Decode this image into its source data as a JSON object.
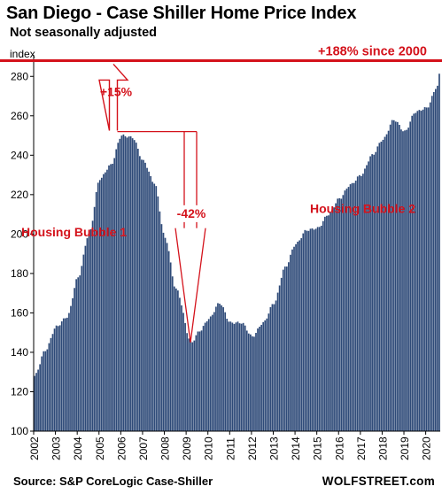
{
  "chart_data": {
    "type": "bar",
    "title": "San Diego - Case Shiller Home Price Index",
    "subtitle": "Not seasonally adjusted",
    "ylabel": "index",
    "ylim": [
      100,
      290
    ],
    "yticks": [
      100,
      120,
      140,
      160,
      180,
      200,
      220,
      240,
      260,
      280
    ],
    "xlabels": [
      "2002",
      "2003",
      "2004",
      "2005",
      "2006",
      "2007",
      "2008",
      "2009",
      "2010",
      "2011",
      "2012",
      "2013",
      "2014",
      "2015",
      "2016",
      "2017",
      "2018",
      "2019",
      "2020"
    ],
    "x_start": 2002.0,
    "months": 224,
    "grid": false,
    "series_color": "#2e4a78",
    "annotation_color": "#d4121b",
    "keypoints": [
      [
        2002.0,
        128
      ],
      [
        2002.5,
        141
      ],
      [
        2003.0,
        153
      ],
      [
        2003.5,
        158
      ],
      [
        2004.0,
        178
      ],
      [
        2004.5,
        200
      ],
      [
        2005.0,
        228
      ],
      [
        2005.5,
        235
      ],
      [
        2006.0,
        250
      ],
      [
        2006.5,
        249
      ],
      [
        2007.0,
        237
      ],
      [
        2007.5,
        226
      ],
      [
        2008.0,
        198
      ],
      [
        2008.5,
        172
      ],
      [
        2009.2,
        145
      ],
      [
        2009.6,
        151
      ],
      [
        2010.0,
        157
      ],
      [
        2010.5,
        165
      ],
      [
        2011.0,
        155
      ],
      [
        2011.5,
        155
      ],
      [
        2012.0,
        148
      ],
      [
        2012.5,
        155
      ],
      [
        2013.0,
        165
      ],
      [
        2013.5,
        183
      ],
      [
        2014.0,
        195
      ],
      [
        2014.5,
        202
      ],
      [
        2015.0,
        203
      ],
      [
        2015.5,
        210
      ],
      [
        2016.0,
        218
      ],
      [
        2016.5,
        225
      ],
      [
        2017.0,
        230
      ],
      [
        2017.5,
        240
      ],
      [
        2018.0,
        248
      ],
      [
        2018.5,
        258
      ],
      [
        2019.0,
        252
      ],
      [
        2019.5,
        262
      ],
      [
        2020.0,
        264
      ],
      [
        2020.5,
        275
      ],
      [
        2020.67,
        287
      ]
    ],
    "annotations": {
      "peak_line_value": 288,
      "peak_line_label": "+188% since 2000",
      "bubble1_label": "Housing Bubble 1",
      "bubble2_label": "Housing Bubble 2",
      "up_pct": "+15%",
      "down_pct": "-42%"
    }
  },
  "footer": {
    "source": "Source: S&P CoreLogic Case-Shiller",
    "brand": "WOLFSTREET.com"
  }
}
